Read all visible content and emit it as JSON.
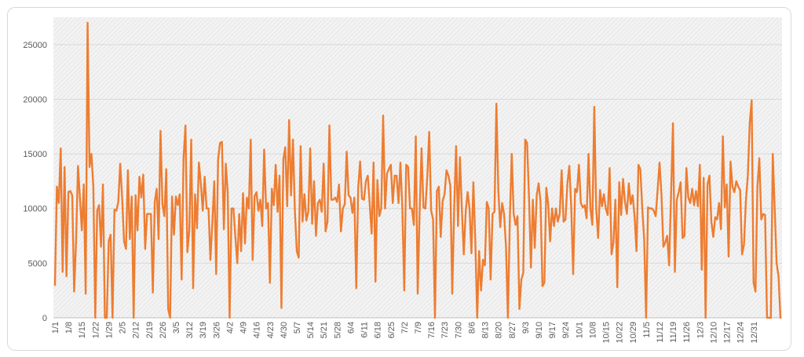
{
  "chart_data": {
    "type": "line",
    "title": "",
    "xlabel": "",
    "ylabel": "",
    "ylim": [
      0,
      27500
    ],
    "yticks": [
      0,
      5000,
      10000,
      15000,
      20000,
      25000
    ],
    "xtick_labels": [
      "1/1",
      "1/8",
      "1/15",
      "1/22",
      "1/29",
      "2/5",
      "2/12",
      "2/19",
      "2/26",
      "3/5",
      "3/12",
      "3/19",
      "3/26",
      "4/2",
      "4/9",
      "4/16",
      "4/23",
      "4/30",
      "5/7",
      "5/14",
      "5/21",
      "5/28",
      "6/4",
      "6/11",
      "6/18",
      "6/25",
      "7/2",
      "7/9",
      "7/16",
      "7/23",
      "7/30",
      "8/6",
      "8/13",
      "8/20",
      "8/27",
      "9/3",
      "9/10",
      "9/17",
      "9/24",
      "10/1",
      "10/8",
      "10/15",
      "10/22",
      "10/29",
      "11/5",
      "11/12",
      "11/19",
      "11/26",
      "12/3",
      "12/10",
      "12/17",
      "12/24",
      "12/31"
    ],
    "grid": true,
    "colors": {
      "line": "#ED7D31",
      "grid": "#d9d9d9",
      "plot_background_hatch": "#e4e4e4"
    },
    "series": [
      {
        "values": [
          3000,
          12000,
          10500,
          15500,
          4200,
          13800,
          3800,
          11500,
          11600,
          11200,
          2400,
          7000,
          13900,
          11000,
          8000,
          12200,
          2200,
          27000,
          13800,
          15000,
          12000,
          0,
          9800,
          10300,
          6500,
          12200,
          0,
          0,
          7000,
          7600,
          0,
          9900,
          9800,
          10600,
          14100,
          11000,
          7000,
          6300,
          13500,
          7200,
          11100,
          0,
          11200,
          8000,
          12900,
          11000,
          13100,
          6300,
          9500,
          9500,
          9500,
          2300,
          10600,
          11800,
          7200,
          17100,
          10400,
          9300,
          13600,
          800,
          0,
          11100,
          7600,
          11100,
          10300,
          11300,
          3500,
          14600,
          17600,
          6000,
          8000,
          16300,
          2700,
          11300,
          8200,
          14200,
          12300,
          9800,
          12900,
          10000,
          10000,
          5300,
          8700,
          12500,
          4000,
          14500,
          16000,
          16100,
          8100,
          14100,
          11500,
          0,
          10000,
          10000,
          7400,
          5000,
          9500,
          6100,
          11400,
          6800,
          11000,
          10000,
          16300,
          5300,
          11100,
          11500,
          9800,
          10800,
          8400,
          15400,
          10000,
          10500,
          3200,
          11800,
          10300,
          14000,
          9700,
          13000,
          900,
          14500,
          15600,
          10200,
          18100,
          11200,
          16300,
          9800,
          6100,
          5500,
          15700,
          8800,
          11300,
          8900,
          9700,
          15500,
          8600,
          12500,
          7500,
          10500,
          10800,
          9700,
          14100,
          7900,
          8800,
          17600,
          10800,
          10800,
          11000,
          10600,
          12200,
          7900,
          10000,
          10400,
          15200,
          11200,
          11000,
          9600,
          11000,
          2700,
          11900,
          14300,
          10900,
          10800,
          12500,
          13000,
          10400,
          7700,
          14200,
          3300,
          12600,
          9300,
          10000,
          18500,
          10000,
          13200,
          13600,
          14000,
          10500,
          13000,
          13000,
          10500,
          14200,
          10000,
          2500,
          14000,
          13800,
          10000,
          10000,
          8500,
          16600,
          2200,
          9700,
          15500,
          10100,
          10000,
          12900,
          17000,
          9800,
          9000,
          0,
          11600,
          12000,
          7400,
          10700,
          11300,
          13500,
          13000,
          12100,
          2200,
          10000,
          15700,
          8400,
          14700,
          10000,
          5800,
          9700,
          11500,
          10000,
          5900,
          12400,
          7100,
          0,
          6100,
          2500,
          5300,
          4800,
          10600,
          10000,
          3500,
          9500,
          9700,
          19600,
          11700,
          8300,
          10500,
          9500,
          6500,
          0,
          9000,
          15000,
          9500,
          8500,
          9300,
          800,
          3500,
          4100,
          16300,
          16000,
          11000,
          4600,
          10800,
          6400,
          11200,
          12300,
          10600,
          2900,
          3200,
          11900,
          10400,
          7000,
          10000,
          8400,
          10000,
          8800,
          9500,
          13500,
          8800,
          9000,
          12300,
          13900,
          10100,
          4000,
          11800,
          11500,
          14000,
          10500,
          10100,
          10300,
          9100,
          15000,
          10000,
          8500,
          19300,
          10000,
          7300,
          11700,
          10200,
          11300,
          10000,
          9400,
          13700,
          5800,
          6900,
          10800,
          2800,
          12400,
          9400,
          12700,
          10600,
          9500,
          12300,
          10400,
          11200,
          9300,
          6100,
          14000,
          13600,
          10000,
          7200,
          0,
          10100,
          10000,
          10000,
          9800,
          9300,
          11700,
          14200,
          11300,
          6500,
          6900,
          7500,
          4800,
          11200,
          17800,
          4200,
          10800,
          11500,
          12400,
          7300,
          7500,
          13700,
          11000,
          10500,
          11800,
          10300,
          11600,
          10200,
          14000,
          4400,
          12800,
          0,
          12200,
          13000,
          8800,
          7400,
          9200,
          9000,
          10500,
          8100,
          16600,
          10100,
          12200,
          5600,
          14300,
          12000,
          11500,
          12500,
          12000,
          11700,
          5800,
          6700,
          10700,
          13000,
          17800,
          19900,
          3200,
          2400,
          12000,
          14600,
          9000,
          9500,
          9400,
          0,
          0,
          0,
          15000,
          10000,
          5000,
          3800,
          0
        ]
      }
    ]
  }
}
